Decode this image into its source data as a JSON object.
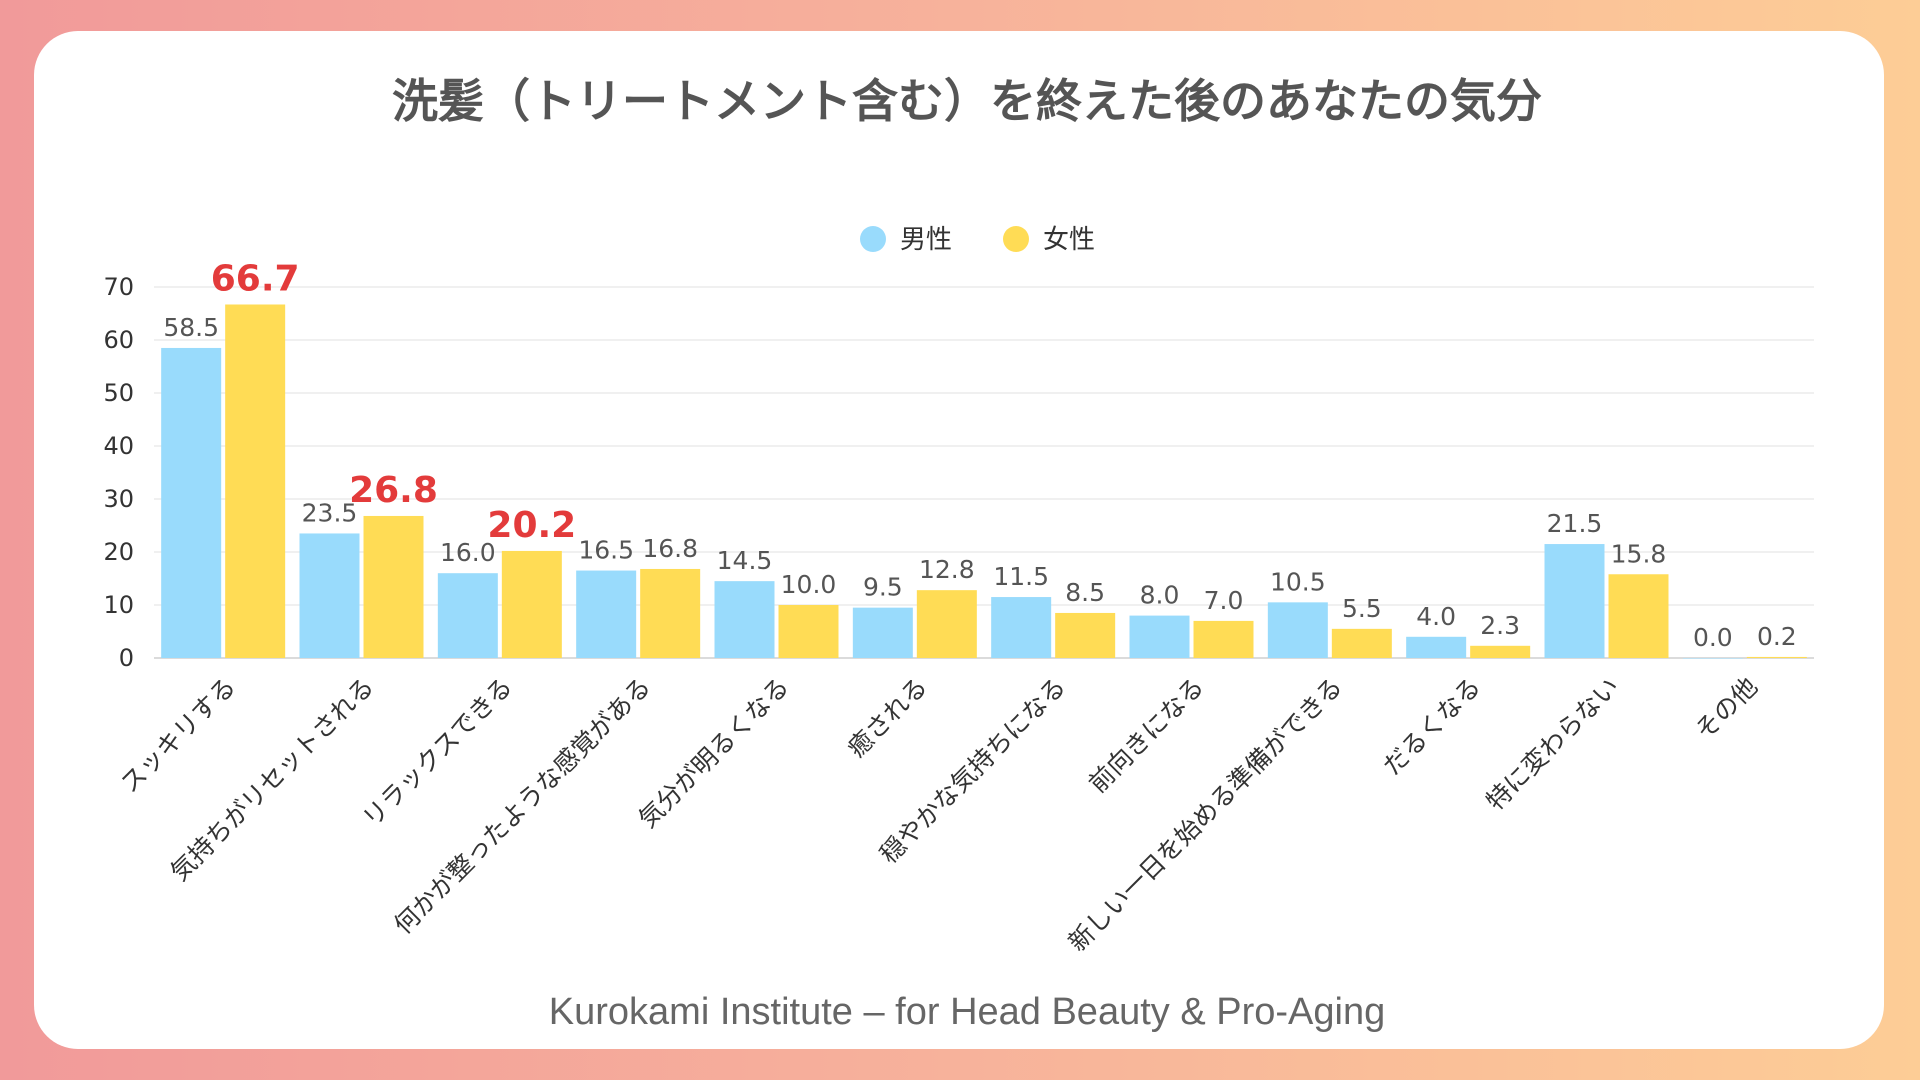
{
  "colors": {
    "male": "#99dbfc",
    "female": "#ffdc55",
    "highlight_label": "#e33b3b"
  },
  "footer": "Kurokami Institute – for Head Beauty & Pro-Aging",
  "chart_data": {
    "type": "bar",
    "title": "洗髪（トリートメント含む）を終えた後のあなたの気分",
    "xlabel": "",
    "ylabel": "",
    "ylim": [
      0,
      70
    ],
    "yticks": [
      0,
      10,
      20,
      30,
      40,
      50,
      60,
      70
    ],
    "grid": true,
    "legend_position": "top-center",
    "categories": [
      "スッキリする",
      "気持ちがリセットされる",
      "リラックスできる",
      "何かが整ったような感覚がある",
      "気分が明るくなる",
      "癒される",
      "穏やかな気持ちになる",
      "前向きになる",
      "新しい一日を始める準備ができる",
      "だるくなる",
      "特に変わらない",
      "その他"
    ],
    "series": [
      {
        "name": "男性",
        "values": [
          58.5,
          23.5,
          16.0,
          16.5,
          14.5,
          9.5,
          11.5,
          8.0,
          10.5,
          4.0,
          21.5,
          0.0
        ],
        "labels": [
          "58.5",
          "23.5",
          "16.0",
          "16.5",
          "14.5",
          "9.5",
          "11.5",
          "8.0",
          "10.5",
          "4.0",
          "21.5",
          "0.0"
        ]
      },
      {
        "name": "女性",
        "values": [
          66.7,
          26.8,
          20.2,
          16.8,
          10.0,
          12.8,
          8.5,
          7.0,
          5.5,
          2.3,
          15.8,
          0.2
        ],
        "labels": [
          "66.7",
          "26.8",
          "20.2",
          "16.8",
          "10.0",
          "12.8",
          "8.5",
          "7.0",
          "5.5",
          "2.3",
          "15.8",
          "0.2"
        ],
        "highlighted": [
          0,
          1,
          2
        ]
      }
    ]
  }
}
